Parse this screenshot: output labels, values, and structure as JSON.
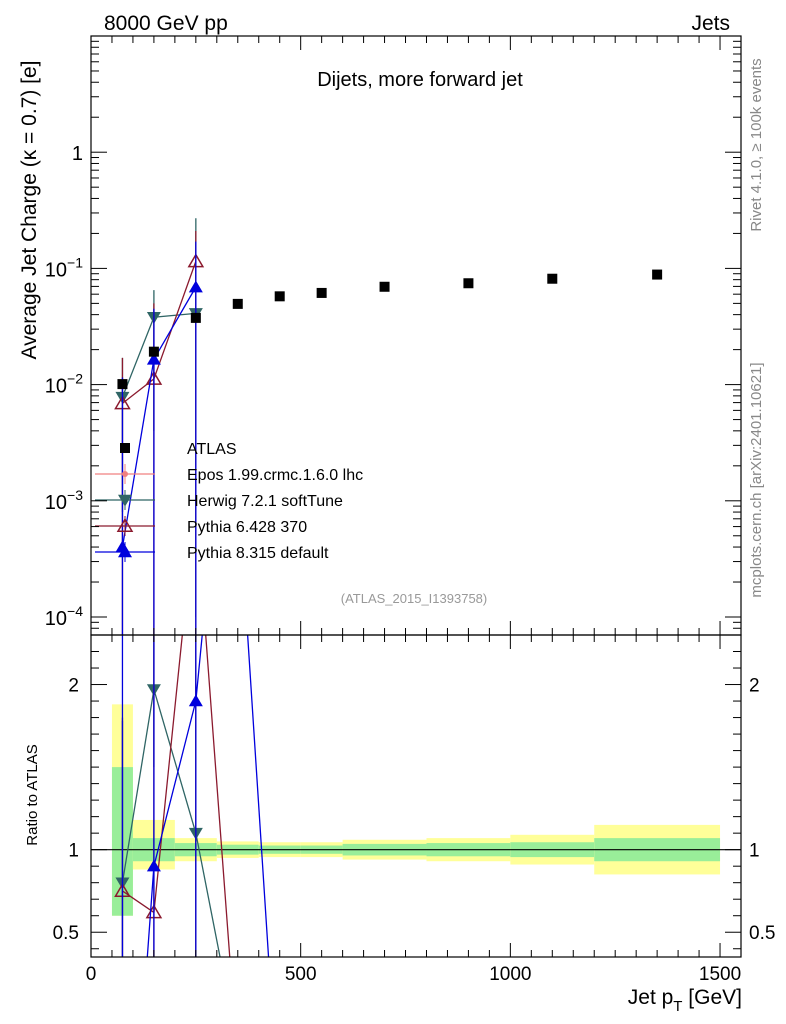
{
  "header": {
    "left": "8000 GeV pp",
    "right": "Jets"
  },
  "side_labels": {
    "rivet": "Rivet 4.1.0, ≥ 100k events",
    "mcplots": "mcplots.cern.ch [arXiv:2401.10621]"
  },
  "chart_data": {
    "type": "scatter",
    "title": "Dijets, more forward jet",
    "analysis_id": "(ATLAS_2015_I1393758)",
    "xlabel": "Jet p_T [GeV]",
    "ylabel": "Average Jet Charge (κ = 0.7) [e]",
    "ratio_ylabel": "Ratio to ATLAS",
    "xlim": [
      0,
      1550
    ],
    "ylim": [
      7e-05,
      10
    ],
    "yscale": "log",
    "ratio_ylim": [
      0.35,
      2.3
    ],
    "x_ticks": [
      0,
      500,
      1000,
      1500
    ],
    "x_tick_labels": [
      "0",
      "500",
      "1000",
      "1500"
    ],
    "y_ticks": [
      0.0001,
      0.001,
      0.01,
      0.1,
      1
    ],
    "y_tick_labels": [
      {
        "base": "10",
        "exp": "−4"
      },
      {
        "base": "10",
        "exp": "−3"
      },
      {
        "base": "10",
        "exp": "−2"
      },
      {
        "base": "10",
        "exp": "−1"
      },
      {
        "base": "1",
        "exp": ""
      }
    ],
    "ratio_ticks": [
      0.5,
      1,
      2
    ],
    "ratio_tick_labels": [
      "0.5",
      "1",
      "2"
    ],
    "data": {
      "name": "ATLAS",
      "color": "#000000",
      "bins": [
        [
          50,
          100
        ],
        [
          100,
          200
        ],
        [
          200,
          300
        ],
        [
          300,
          400
        ],
        [
          400,
          500
        ],
        [
          500,
          600
        ],
        [
          600,
          800
        ],
        [
          800,
          1000
        ],
        [
          1000,
          1200
        ],
        [
          1200,
          1500
        ]
      ],
      "x": [
        75,
        150,
        250,
        350,
        450,
        550,
        700,
        900,
        1100,
        1350
      ],
      "y": [
        0.0101,
        0.0192,
        0.0375,
        0.0495,
        0.0575,
        0.0615,
        0.0695,
        0.0745,
        0.0815,
        0.0885
      ],
      "band_yellow": [
        [
          0.6,
          1.88
        ],
        [
          0.88,
          1.18
        ],
        [
          0.93,
          1.07
        ],
        [
          0.95,
          1.05
        ],
        [
          0.955,
          1.045
        ],
        [
          0.955,
          1.045
        ],
        [
          0.94,
          1.06
        ],
        [
          0.93,
          1.07
        ],
        [
          0.91,
          1.09
        ],
        [
          0.85,
          1.15
        ]
      ],
      "band_green": [
        [
          0.6,
          1.5
        ],
        [
          0.93,
          1.07
        ],
        [
          0.96,
          1.04
        ],
        [
          0.97,
          1.03
        ],
        [
          0.975,
          1.025
        ],
        [
          0.975,
          1.025
        ],
        [
          0.965,
          1.035
        ],
        [
          0.96,
          1.04
        ],
        [
          0.955,
          1.045
        ],
        [
          0.93,
          1.07
        ]
      ]
    },
    "series": [
      {
        "name": "Epos 1.99.crmc.1.6.0 lhc",
        "color": "#f08080",
        "marker": "star",
        "x": [],
        "y": [],
        "ratio": []
      },
      {
        "name": "Herwig 7.2.1 softTune",
        "color": "#2f6565",
        "marker": "tri-down",
        "x": [
          75,
          150,
          250
        ],
        "y": [
          0.0078,
          0.038,
          0.041
        ],
        "ratio": [
          0.8,
          1.97,
          1.1
        ]
      },
      {
        "name": "Pythia 6.428 370",
        "color": "#8b1a2e",
        "marker": "tri-up-open",
        "x": [
          75,
          150,
          250
        ],
        "y": [
          0.0069,
          0.0112,
          0.115
        ],
        "ratio": [
          0.75,
          0.62,
          3.1
        ]
      },
      {
        "name": "Pythia 8.315 default",
        "color": "#0000dd",
        "marker": "tri-up",
        "x": [
          75,
          150,
          250
        ],
        "y": [
          0.0004,
          0.0165,
          0.069
        ],
        "ratio": [
          0.04,
          0.9,
          1.9
        ]
      }
    ]
  }
}
